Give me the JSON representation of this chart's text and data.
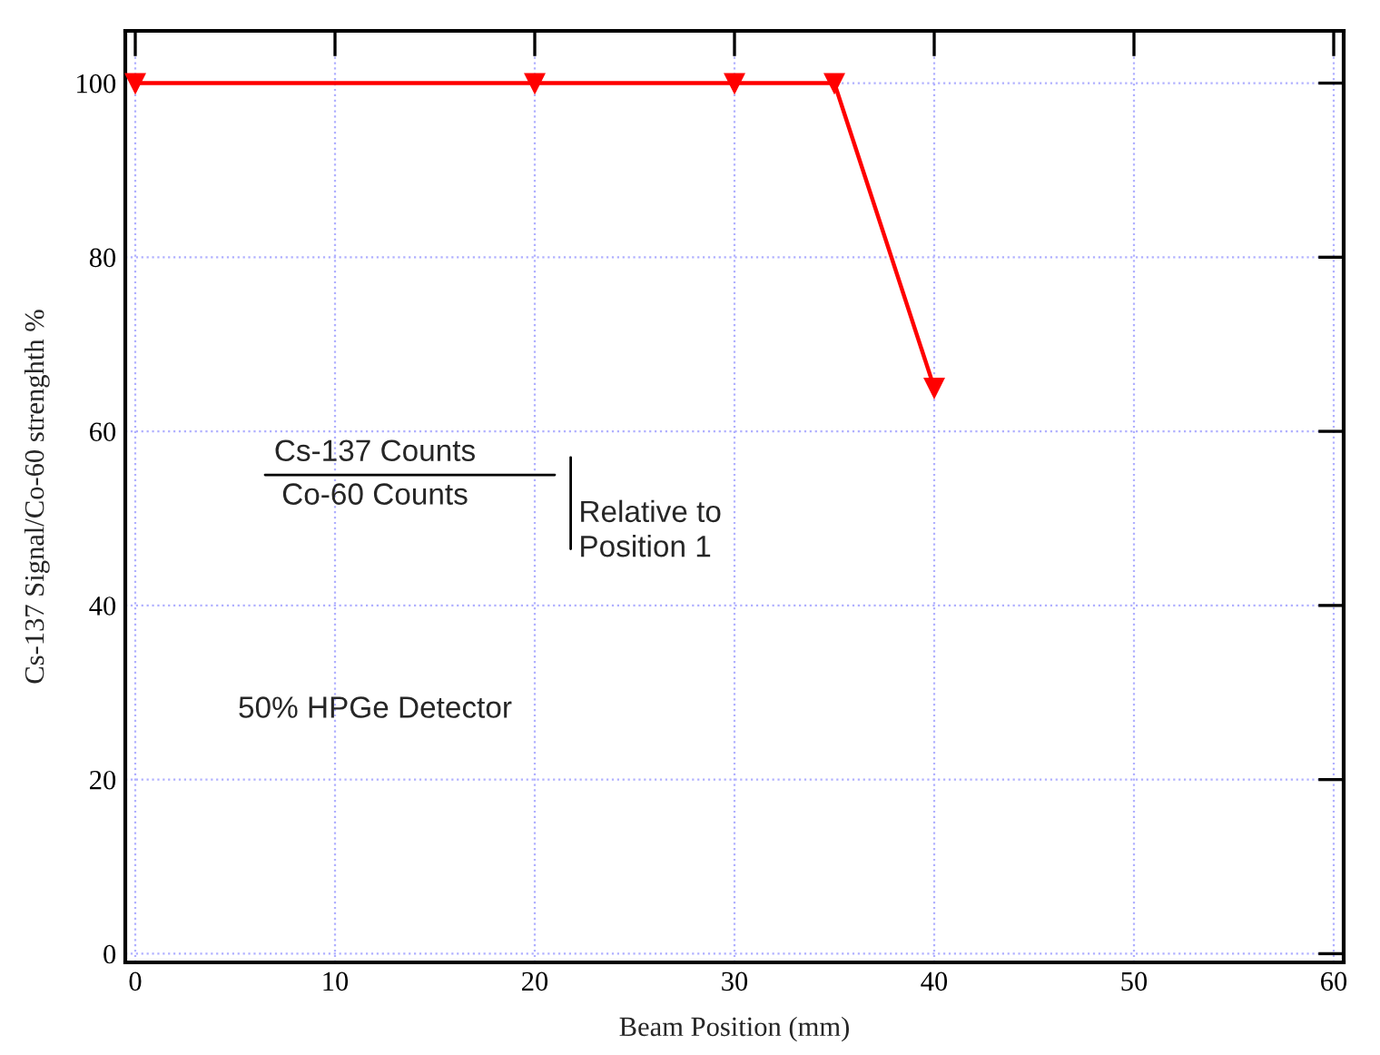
{
  "chart_data": {
    "type": "line",
    "xlabel": "Beam Position (mm)",
    "ylabel": "Cs-137 Signal/Co-60 strenghth %",
    "x": [
      0,
      20,
      30,
      35,
      40
    ],
    "series": [
      {
        "color": "#ff0000",
        "values": [
          100,
          100,
          100,
          100,
          65
        ]
      }
    ],
    "xlim": [
      -0.5,
      60.5
    ],
    "ylim": [
      -1,
      106
    ],
    "xticks": [
      0,
      10,
      20,
      30,
      40,
      50,
      60
    ],
    "yticks": [
      0,
      20,
      40,
      60,
      80,
      100
    ],
    "grid": true,
    "marker": "triangle",
    "line_style": "solid",
    "annotations": [
      "Cs-137 Counts",
      "Co-60 Counts",
      "Relative to\nPosition 1",
      "50% HPGe Detector"
    ]
  }
}
